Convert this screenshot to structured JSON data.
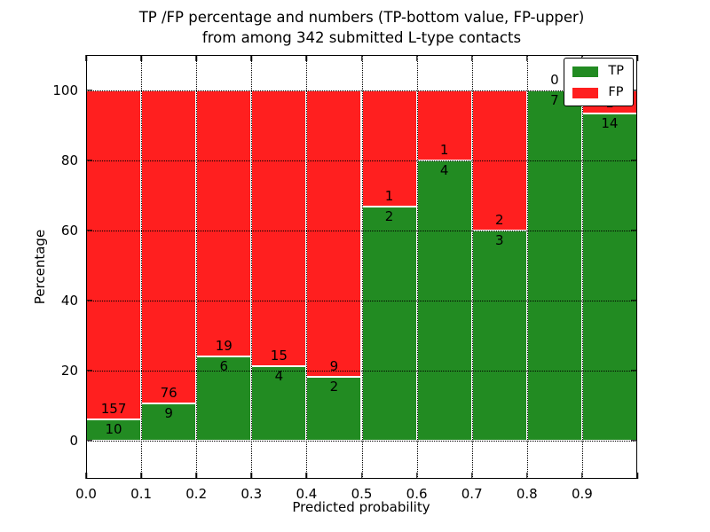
{
  "chart_data": {
    "type": "bar",
    "stacked": true,
    "title": "TP /FP percentage and numbers (TP-bottom value, FP-upper)",
    "subtitle": "from among 342 submitted L-type contacts",
    "xlabel": "Predicted probability",
    "ylabel": "Percentage",
    "total_contacts": 342,
    "categories": [
      "0.0-0.1",
      "0.1-0.2",
      "0.2-0.3",
      "0.3-0.4",
      "0.4-0.5",
      "0.5-0.6",
      "0.6-0.7",
      "0.7-0.8",
      "0.8-0.9",
      "0.9-1.0"
    ],
    "series": [
      {
        "name": "TP",
        "color": "#228b22",
        "counts": [
          10,
          9,
          6,
          4,
          2,
          2,
          4,
          3,
          7,
          14
        ]
      },
      {
        "name": "FP",
        "color": "#ff1f1f",
        "counts": [
          157,
          76,
          19,
          15,
          9,
          1,
          1,
          2,
          0,
          1
        ]
      }
    ],
    "tp_percent": [
      6.0,
      10.6,
      24.0,
      21.1,
      18.2,
      66.7,
      80.0,
      60.0,
      100.0,
      93.3
    ],
    "xticks": [
      "0.0",
      "0.1",
      "0.2",
      "0.3",
      "0.4",
      "0.5",
      "0.6",
      "0.7",
      "0.8",
      "0.9"
    ],
    "yticks": [
      0,
      20,
      40,
      60,
      80,
      100
    ],
    "xlim": [
      0.0,
      1.0
    ],
    "ylim": [
      -11,
      110
    ],
    "grid": "dotted",
    "bar_edge_color": "#ffffff",
    "background": "#ffffff",
    "legend_position": "upper right"
  }
}
